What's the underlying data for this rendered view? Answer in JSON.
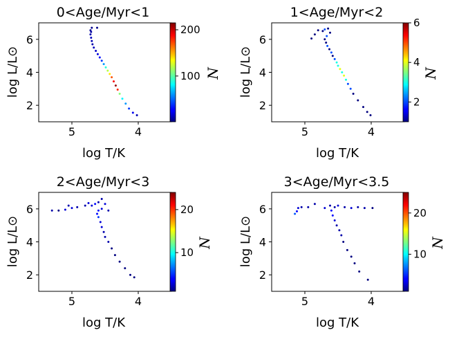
{
  "chart_data": [
    {
      "type": "scatter",
      "title": "0<Age/Myr<1",
      "xlabel": "log T/K",
      "ylabel": "log L/L⊙",
      "colorbar_label": "N",
      "xlim": [
        5.5,
        3.5
      ],
      "ylim": [
        1,
        7
      ],
      "xticks": [
        5,
        4
      ],
      "yticks": [
        2,
        4,
        6
      ],
      "clim": [
        1,
        215
      ],
      "cticks": [
        100,
        200
      ],
      "colormap": "jet",
      "series": [
        {
          "points": [
            [
              4.72,
              6.55,
              6
            ],
            [
              4.71,
              6.45,
              8
            ],
            [
              4.72,
              6.3,
              10
            ],
            [
              4.71,
              6.1,
              14
            ],
            [
              4.7,
              5.9,
              12
            ],
            [
              4.69,
              5.7,
              10
            ],
            [
              4.67,
              5.5,
              14
            ],
            [
              4.64,
              5.3,
              16
            ],
            [
              4.61,
              5.1,
              20
            ],
            [
              4.58,
              4.9,
              30
            ],
            [
              4.55,
              4.7,
              40
            ],
            [
              4.52,
              4.5,
              60
            ],
            [
              4.49,
              4.3,
              90
            ],
            [
              4.46,
              4.1,
              120
            ],
            [
              4.43,
              3.9,
              140
            ],
            [
              4.4,
              3.7,
              170
            ],
            [
              4.37,
              3.45,
              190
            ],
            [
              4.34,
              3.2,
              210
            ],
            [
              4.31,
              2.95,
              180
            ],
            [
              4.28,
              2.7,
              110
            ],
            [
              4.24,
              2.4,
              80
            ],
            [
              4.19,
              2.1,
              60
            ],
            [
              4.14,
              1.8,
              40
            ],
            [
              4.08,
              1.55,
              25
            ],
            [
              4.02,
              1.4,
              12
            ],
            [
              4.7,
              6.7,
              4
            ],
            [
              4.62,
              6.7,
              3
            ]
          ]
        }
      ]
    },
    {
      "type": "scatter",
      "title": "1<Age/Myr<2",
      "xlabel": "log T/K",
      "ylabel": "log L/L⊙",
      "colorbar_label": "N",
      "xlim": [
        5.5,
        3.5
      ],
      "ylim": [
        1,
        7
      ],
      "xticks": [
        5,
        4
      ],
      "yticks": [
        2,
        4,
        6
      ],
      "clim": [
        1,
        6
      ],
      "cticks": [
        2,
        4,
        6
      ],
      "colormap": "jet",
      "series": [
        {
          "points": [
            [
              4.9,
              6.05,
              1
            ],
            [
              4.85,
              6.3,
              1
            ],
            [
              4.8,
              6.55,
              1
            ],
            [
              4.73,
              6.5,
              1
            ],
            [
              4.7,
              6.6,
              2
            ],
            [
              4.65,
              6.65,
              1
            ],
            [
              4.62,
              6.4,
              1
            ],
            [
              4.67,
              6.2,
              2
            ],
            [
              4.7,
              6.0,
              1
            ],
            [
              4.68,
              5.8,
              1
            ],
            [
              4.66,
              5.6,
              2
            ],
            [
              4.63,
              5.4,
              1
            ],
            [
              4.6,
              5.2,
              2
            ],
            [
              4.58,
              5.0,
              1
            ],
            [
              4.55,
              4.8,
              2
            ],
            [
              4.52,
              4.6,
              3
            ],
            [
              4.5,
              4.4,
              3
            ],
            [
              4.47,
              4.2,
              4
            ],
            [
              4.44,
              4.0,
              3
            ],
            [
              4.41,
              3.8,
              4
            ],
            [
              4.38,
              3.55,
              3
            ],
            [
              4.35,
              3.3,
              2
            ],
            [
              4.31,
              3.0,
              2
            ],
            [
              4.27,
              2.7,
              1
            ],
            [
              4.2,
              2.3,
              1
            ],
            [
              4.12,
              1.9,
              1
            ],
            [
              4.06,
              1.6,
              1
            ],
            [
              4.01,
              1.4,
              1
            ]
          ]
        }
      ]
    },
    {
      "type": "scatter",
      "title": "2<Age/Myr<3",
      "xlabel": "log T/K",
      "ylabel": "log L/L⊙",
      "colorbar_label": "N",
      "xlim": [
        5.5,
        3.5
      ],
      "ylim": [
        1,
        7
      ],
      "xticks": [
        5,
        4
      ],
      "yticks": [
        2,
        4,
        6
      ],
      "clim": [
        1,
        24
      ],
      "cticks": [
        10,
        20
      ],
      "colormap": "jet",
      "series": [
        {
          "points": [
            [
              5.3,
              5.9,
              2
            ],
            [
              5.2,
              5.9,
              1
            ],
            [
              5.1,
              5.95,
              3
            ],
            [
              5.05,
              6.2,
              2
            ],
            [
              5.0,
              6.05,
              3
            ],
            [
              4.92,
              6.1,
              2
            ],
            [
              4.8,
              6.2,
              2
            ],
            [
              4.75,
              6.35,
              3
            ],
            [
              4.7,
              6.2,
              3
            ],
            [
              4.65,
              6.3,
              4
            ],
            [
              4.6,
              6.4,
              2
            ],
            [
              4.55,
              6.6,
              2
            ],
            [
              4.5,
              6.3,
              3
            ],
            [
              4.45,
              5.9,
              2
            ],
            [
              4.55,
              6.0,
              3
            ],
            [
              4.6,
              5.9,
              4
            ],
            [
              4.62,
              5.7,
              4
            ],
            [
              4.6,
              5.5,
              5
            ],
            [
              4.57,
              5.2,
              3
            ],
            [
              4.55,
              4.9,
              3
            ],
            [
              4.52,
              4.6,
              2
            ],
            [
              4.5,
              4.3,
              2
            ],
            [
              4.45,
              4.0,
              2
            ],
            [
              4.4,
              3.6,
              1
            ],
            [
              4.35,
              3.2,
              1
            ],
            [
              4.28,
              2.8,
              1
            ],
            [
              4.2,
              2.4,
              1
            ],
            [
              4.12,
              2.0,
              1
            ],
            [
              4.06,
              1.85,
              1
            ]
          ]
        }
      ]
    },
    {
      "type": "scatter",
      "title": "3<Age/Myr<3.5",
      "xlabel": "log T/K",
      "ylabel": "log L/L⊙",
      "colorbar_label": "N",
      "xlim": [
        5.5,
        3.5
      ],
      "ylim": [
        1,
        7
      ],
      "xticks": [
        5,
        4
      ],
      "yticks": [
        2,
        4,
        6
      ],
      "clim": [
        1,
        25
      ],
      "cticks": [
        10,
        20
      ],
      "colormap": "jet",
      "series": [
        {
          "points": [
            [
              5.15,
              5.7,
              6
            ],
            [
              5.12,
              5.85,
              4
            ],
            [
              5.1,
              6.05,
              3
            ],
            [
              5.05,
              6.1,
              2
            ],
            [
              4.95,
              6.1,
              2
            ],
            [
              4.85,
              6.3,
              2
            ],
            [
              4.7,
              6.05,
              3
            ],
            [
              4.62,
              6.2,
              2
            ],
            [
              4.55,
              6.1,
              2
            ],
            [
              4.5,
              6.2,
              3
            ],
            [
              4.4,
              6.1,
              2
            ],
            [
              4.3,
              6.05,
              3
            ],
            [
              4.2,
              6.1,
              2
            ],
            [
              4.1,
              6.05,
              2
            ],
            [
              3.98,
              6.05,
              1
            ],
            [
              4.6,
              5.9,
              4
            ],
            [
              4.58,
              5.6,
              4
            ],
            [
              4.55,
              5.3,
              3
            ],
            [
              4.52,
              5.0,
              2
            ],
            [
              4.48,
              4.7,
              2
            ],
            [
              4.45,
              4.4,
              2
            ],
            [
              4.42,
              4.0,
              1
            ],
            [
              4.36,
              3.5,
              1
            ],
            [
              4.3,
              3.1,
              1
            ],
            [
              4.25,
              2.7,
              1
            ],
            [
              4.18,
              2.2,
              1
            ],
            [
              4.05,
              1.7,
              1
            ]
          ]
        }
      ]
    }
  ]
}
